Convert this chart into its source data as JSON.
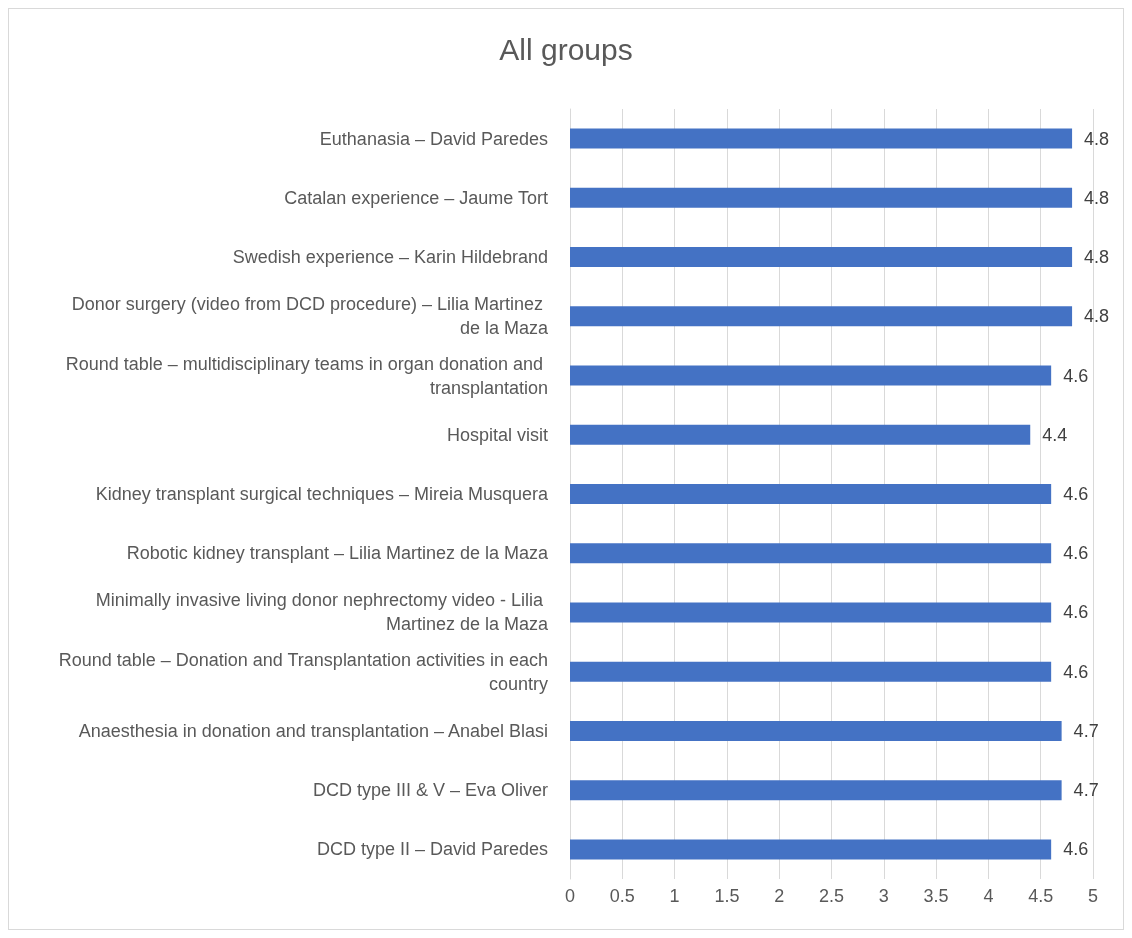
{
  "chart_data": {
    "type": "bar",
    "title": "All groups",
    "orientation": "horizontal",
    "categories": [
      "Euthanasia – David Paredes",
      "Catalan experience – Jaume Tort",
      "Swedish experience – Karin Hildebrand",
      "Donor surgery (video from DCD procedure) – Lilia Martinez de la Maza",
      "Round table – multidisciplinary teams in organ donation and transplantation",
      "Hospital visit",
      "Kidney transplant surgical techniques – Mireia Musquera",
      "Robotic kidney transplant – Lilia Martinez de la Maza",
      "Minimally invasive living donor nephrectomy video - Lilia Martinez de la Maza",
      "Round table – Donation and Transplantation activities in each country",
      "Anaesthesia in donation and transplantation – Anabel Blasi",
      "DCD type III & V – Eva Oliver",
      "DCD type II – David Paredes"
    ],
    "values": [
      4.8,
      4.8,
      4.8,
      4.8,
      4.6,
      4.4,
      4.6,
      4.6,
      4.6,
      4.6,
      4.7,
      4.7,
      4.6
    ],
    "color": "#4472c4",
    "xlim": [
      0,
      5
    ],
    "xticks": [
      0,
      0.5,
      1,
      1.5,
      2,
      2.5,
      3,
      3.5,
      4,
      4.5,
      5
    ],
    "grid": "x",
    "data_labels": true
  }
}
